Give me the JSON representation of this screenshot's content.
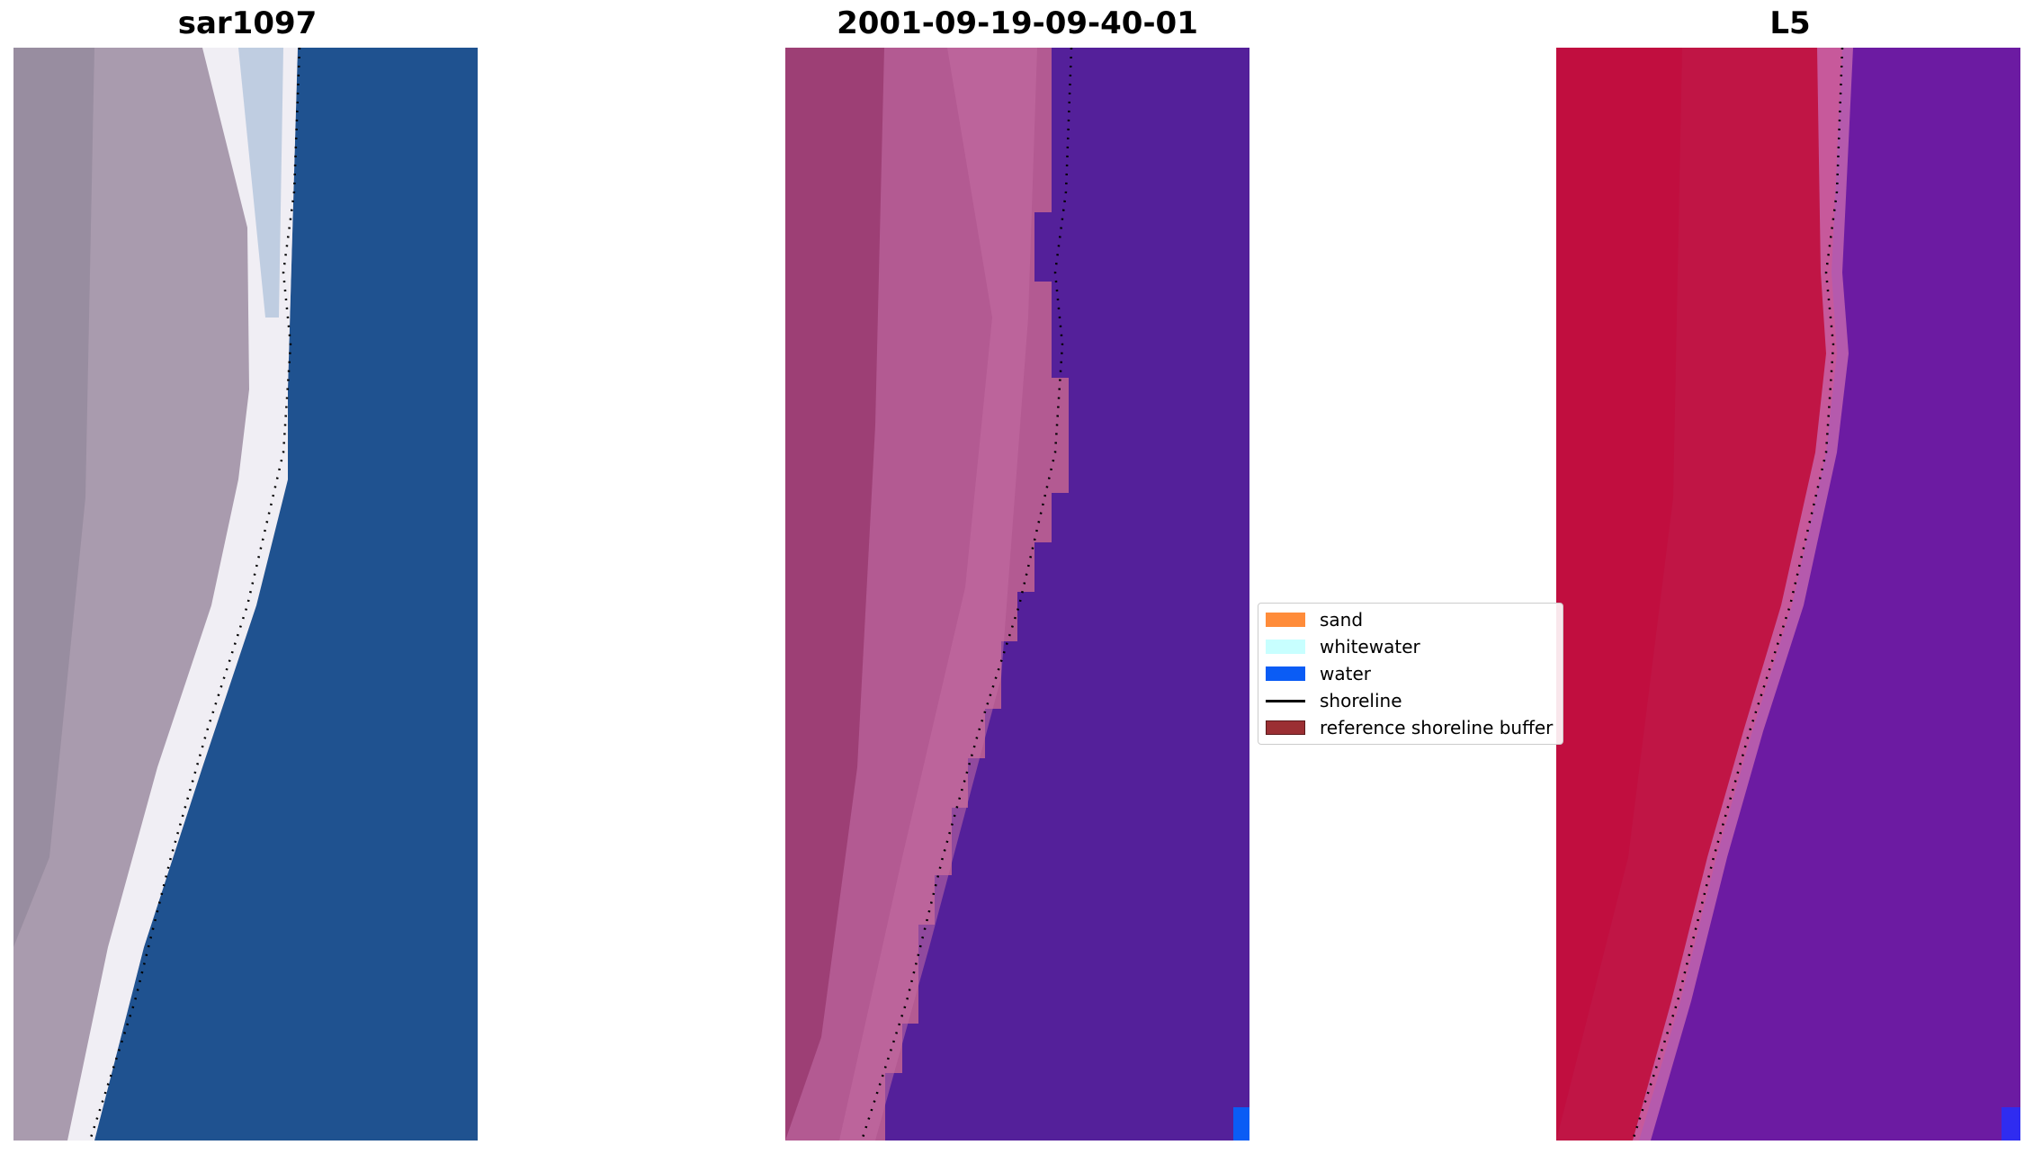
{
  "panels": [
    {
      "title": "sar1097"
    },
    {
      "title": "2001-09-19-09-40-01"
    },
    {
      "title": "L5"
    }
  ],
  "legend": {
    "items": [
      {
        "label": "sand",
        "color": "#ff8c3a"
      },
      {
        "label": "whitewater",
        "color": "#c8ffff"
      },
      {
        "label": "water",
        "color": "#0a5cf5"
      },
      {
        "label": "shoreline",
        "color": "#000000"
      },
      {
        "label": "reference shoreline buffer",
        "color": "#9b2f33"
      }
    ]
  },
  "colors": {
    "sand_rgb": "#b39aa8",
    "water_rgb": "#1f5590",
    "class_land": "#a84c86",
    "class_water": "#54209a",
    "index_land": "#c0103c",
    "index_water": "#6a18a0"
  }
}
